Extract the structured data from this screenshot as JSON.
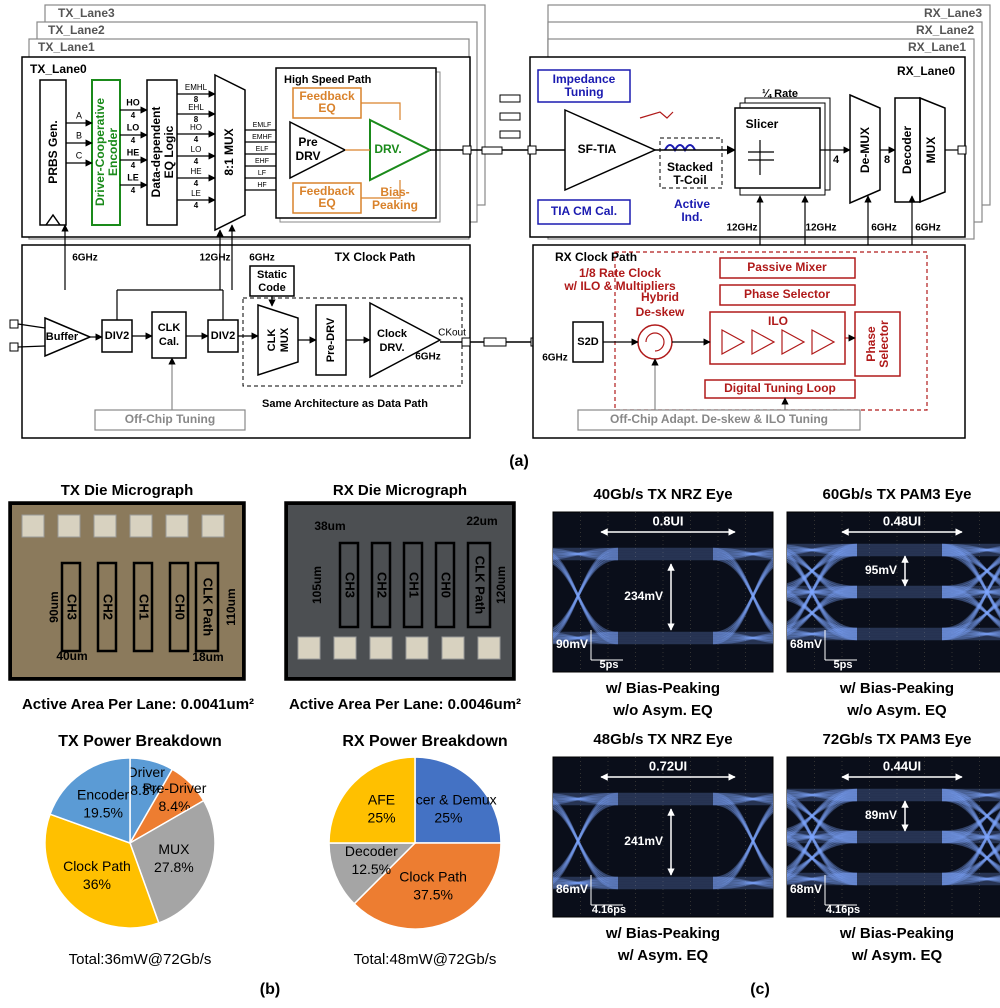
{
  "panel_a": {
    "label": "(a)",
    "tx_lanes": [
      "TX_Lane3",
      "TX_Lane2",
      "TX_Lane1",
      "TX_Lane0"
    ],
    "rx_lanes": [
      "RX_Lane3",
      "RX_Lane2",
      "RX_Lane1",
      "RX_Lane0"
    ],
    "tx": {
      "prbs": "PRBS Gen.",
      "encoder": [
        "Driver-Cooperative",
        "Encoder"
      ],
      "eq_logic": [
        "Data-dependent",
        "EQ Logic"
      ],
      "mux": "8:1 MUX",
      "inputs": [
        "A",
        "B",
        "C"
      ],
      "enc_outputs": [
        "HO",
        "LO",
        "HE",
        "LE"
      ],
      "eq_outputs": [
        "EMHL",
        "EHL",
        "HO",
        "LO",
        "HE",
        "LE"
      ],
      "mux_outputs": [
        "EMLF",
        "EMHF",
        "ELF",
        "EHF",
        "LF",
        "HF"
      ],
      "bus_4": "4",
      "bus_8": "8",
      "high_speed_path": "High Speed Path",
      "feedback_eq_top": [
        "Feedback",
        "EQ"
      ],
      "feedback_eq_bottom": [
        "Feedback",
        "EQ"
      ],
      "pre_drv": [
        "Pre",
        "DRV"
      ],
      "drv": "DRV.",
      "bias_peaking": [
        "Bias-",
        "Peaking"
      ]
    },
    "tx_clock": {
      "title": "TX Clock Path",
      "buffer": "Buffer",
      "div2": "DIV2",
      "clk_cal": [
        "CLK",
        "Cal."
      ],
      "static_code": [
        "Static",
        "Code"
      ],
      "clk_mux": [
        "CLK",
        "MUX"
      ],
      "pre_drv": "Pre-DRV",
      "clock_drv": [
        "Clock",
        "DRV."
      ],
      "ck_out": "CKout",
      "f6": "6GHz",
      "f12": "12GHz",
      "same_arch": "Same Architecture as Data Path",
      "off_chip": "Off-Chip Tuning"
    },
    "rx": {
      "impedance": [
        "Impedance",
        "Tuning"
      ],
      "sf_tia": "SF-TIA",
      "tia_cm": "TIA CM Cal.",
      "tcoil": [
        "Stacked",
        "T-Coil"
      ],
      "active_ind": [
        "Active",
        "Ind."
      ],
      "quarter_rate": "¼ Rate",
      "slicer": "Slicer",
      "demux": "De-MUX",
      "decoder": "Decoder",
      "mux": "MUX",
      "bus_4": "4",
      "bus_8": "8",
      "f12": "12GHz",
      "f6": "6GHz"
    },
    "rx_clock": {
      "title": "RX Clock Path",
      "subtitle": [
        "1/8 Rate Clock",
        "w/ ILO & Multipliers"
      ],
      "passive_mixer": "Passive Mixer",
      "phase_selector": "Phase Selector",
      "ilo": "ILO",
      "hybrid": [
        "Hybrid",
        "De-skew"
      ],
      "s2d": "S2D",
      "phase_selector_v": [
        "Phase",
        "Selector"
      ],
      "digital": "Digital Tuning Loop",
      "off_chip": "Off-Chip Adapt. De-skew & ILO Tuning",
      "f6": "6GHz"
    }
  },
  "panel_b": {
    "label": "(b)",
    "tx_micrograph": {
      "title": "TX Die Micrograph",
      "channels": [
        "CH3",
        "CH2",
        "CH1",
        "CH0",
        "CLK Path"
      ],
      "dims": [
        "90um",
        "40um",
        "110um",
        "18um"
      ],
      "area": "Active Area Per Lane: 0.0041um²"
    },
    "rx_micrograph": {
      "title": "RX Die Micrograph",
      "channels": [
        "CH3",
        "CH2",
        "CH1",
        "CH0",
        "CLK Path"
      ],
      "dims": [
        "38um",
        "22um",
        "105um",
        "120um"
      ],
      "area": "Active Area Per Lane: 0.0046um²"
    }
  },
  "panel_c": {
    "label": "(c)",
    "eyes": [
      {
        "title": "40Gb/s TX NRZ Eye",
        "width": "0.8UI",
        "height": "234mV",
        "vscale": "90mV",
        "hscale": "5ps",
        "captions": [
          "w/ Bias-Peaking",
          "w/o Asym. EQ"
        ]
      },
      {
        "title": "60Gb/s TX PAM3 Eye",
        "width": "0.48UI",
        "height": "95mV",
        "vscale": "68mV",
        "hscale": "5ps",
        "captions": [
          "w/ Bias-Peaking",
          "w/o Asym. EQ"
        ]
      },
      {
        "title": "48Gb/s TX NRZ Eye",
        "width": "0.72UI",
        "height": "241mV",
        "vscale": "86mV",
        "hscale": "4.16ps",
        "captions": [
          "w/ Bias-Peaking",
          "w/ Asym. EQ"
        ]
      },
      {
        "title": "72Gb/s TX PAM3 Eye",
        "width": "0.44UI",
        "height": "89mV",
        "vscale": "68mV",
        "hscale": "4.16ps",
        "captions": [
          "w/ Bias-Peaking",
          "w/ Asym. EQ"
        ]
      }
    ]
  },
  "chart_data": [
    {
      "type": "pie",
      "title": "TX Power Breakdown",
      "categories": [
        "Driver",
        "Pre-Driver",
        "MUX",
        "Clock Path",
        "Encoder"
      ],
      "values": [
        8.3,
        8.4,
        27.8,
        36,
        19.5
      ],
      "value_labels": [
        "8.3%",
        "8.4%",
        "27.8%",
        "36%",
        "19.5%"
      ],
      "colors": [
        "#5b9bd5",
        "#ed7d31",
        "#a5a5a5",
        "#ffc000",
        "#5b9bd5"
      ],
      "caption": "Total:36mW@72Gb/s"
    },
    {
      "type": "pie",
      "title": "RX Power Breakdown",
      "categories": [
        "Slicer & Demux",
        "Clock Path",
        "Decoder",
        "AFE"
      ],
      "values": [
        25,
        37.5,
        12.5,
        25
      ],
      "value_labels": [
        "25%",
        "37.5%",
        "12.5%",
        "25%"
      ],
      "colors": [
        "#4472c4",
        "#ed7d31",
        "#a5a5a5",
        "#ffc000"
      ],
      "caption": "Total:48mW@72Gb/s"
    }
  ]
}
